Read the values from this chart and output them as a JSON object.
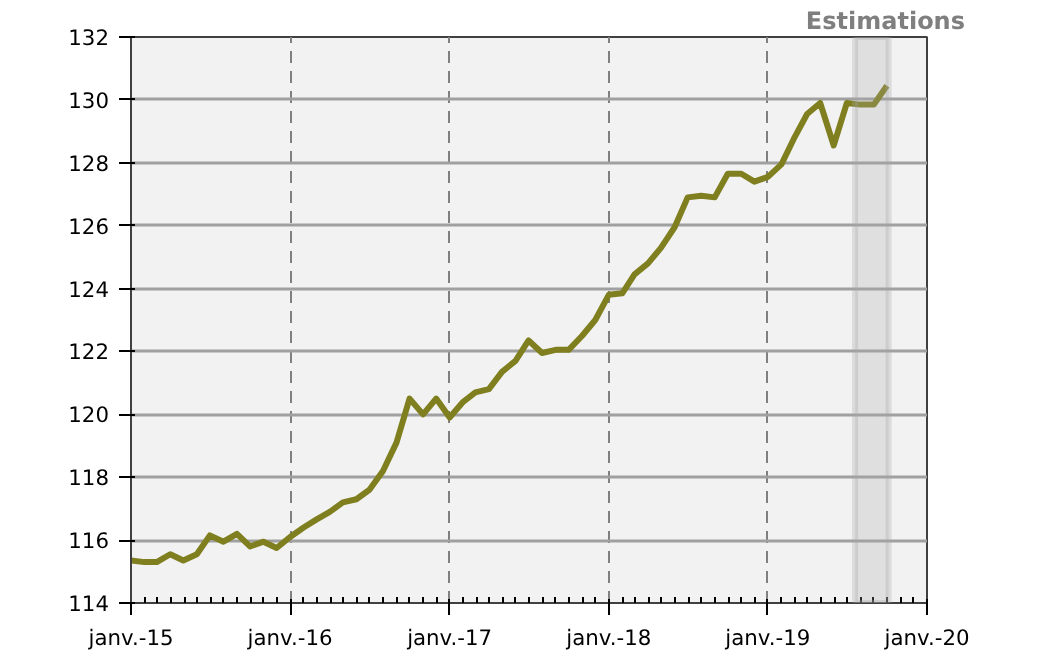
{
  "chart_data": {
    "type": "line",
    "x": [
      "2015-01",
      "2015-02",
      "2015-03",
      "2015-04",
      "2015-05",
      "2015-06",
      "2015-07",
      "2015-08",
      "2015-09",
      "2015-10",
      "2015-11",
      "2015-12",
      "2016-01",
      "2016-02",
      "2016-03",
      "2016-04",
      "2016-05",
      "2016-06",
      "2016-07",
      "2016-08",
      "2016-09",
      "2016-10",
      "2016-11",
      "2016-12",
      "2017-01",
      "2017-02",
      "2017-03",
      "2017-04",
      "2017-05",
      "2017-06",
      "2017-07",
      "2017-08",
      "2017-09",
      "2017-10",
      "2017-11",
      "2017-12",
      "2018-01",
      "2018-02",
      "2018-03",
      "2018-04",
      "2018-05",
      "2018-06",
      "2018-07",
      "2018-08",
      "2018-09",
      "2018-10",
      "2018-11",
      "2018-12",
      "2019-01",
      "2019-02",
      "2019-03",
      "2019-04",
      "2019-05",
      "2019-06",
      "2019-07",
      "2019-08",
      "2019-09",
      "2019-10"
    ],
    "series": [
      {
        "color": "#7f7f1f",
        "values": [
          115.35,
          115.3,
          115.3,
          115.55,
          115.35,
          115.55,
          116.15,
          115.95,
          116.2,
          115.8,
          115.95,
          115.75,
          116.1,
          116.4,
          116.65,
          116.9,
          117.2,
          117.3,
          117.6,
          118.2,
          119.1,
          120.5,
          120.0,
          120.5,
          119.9,
          120.4,
          120.7,
          120.8,
          121.35,
          121.7,
          122.35,
          121.95,
          122.05,
          122.05,
          122.5,
          123.0,
          123.8,
          123.85,
          124.45,
          124.8,
          125.3,
          125.95,
          126.9,
          126.95,
          126.9,
          127.65,
          127.65,
          127.4,
          127.55,
          127.95,
          128.75,
          129.55,
          129.9,
          128.55,
          129.9,
          129.85,
          129.85,
          130.45
        ]
      }
    ],
    "xlim": [
      "2015-01",
      "2020-01"
    ],
    "xticks": [
      {
        "value": "2015-01",
        "label": "janv.-15"
      },
      {
        "value": "2016-01",
        "label": "janv.-16"
      },
      {
        "value": "2017-01",
        "label": "janv.-17"
      },
      {
        "value": "2018-01",
        "label": "janv.-18"
      },
      {
        "value": "2019-01",
        "label": "janv.-19"
      },
      {
        "value": "2020-01",
        "label": "janv.-20"
      }
    ],
    "ylim": [
      114,
      132
    ],
    "yticks": [
      114,
      116,
      118,
      120,
      122,
      124,
      126,
      128,
      130,
      132
    ],
    "grid": true,
    "bands": [
      {
        "axis": "x",
        "from": "2019-07-20",
        "to": "2019-10-05",
        "label": "Estimations",
        "color": "#a6a6a6"
      }
    ]
  }
}
